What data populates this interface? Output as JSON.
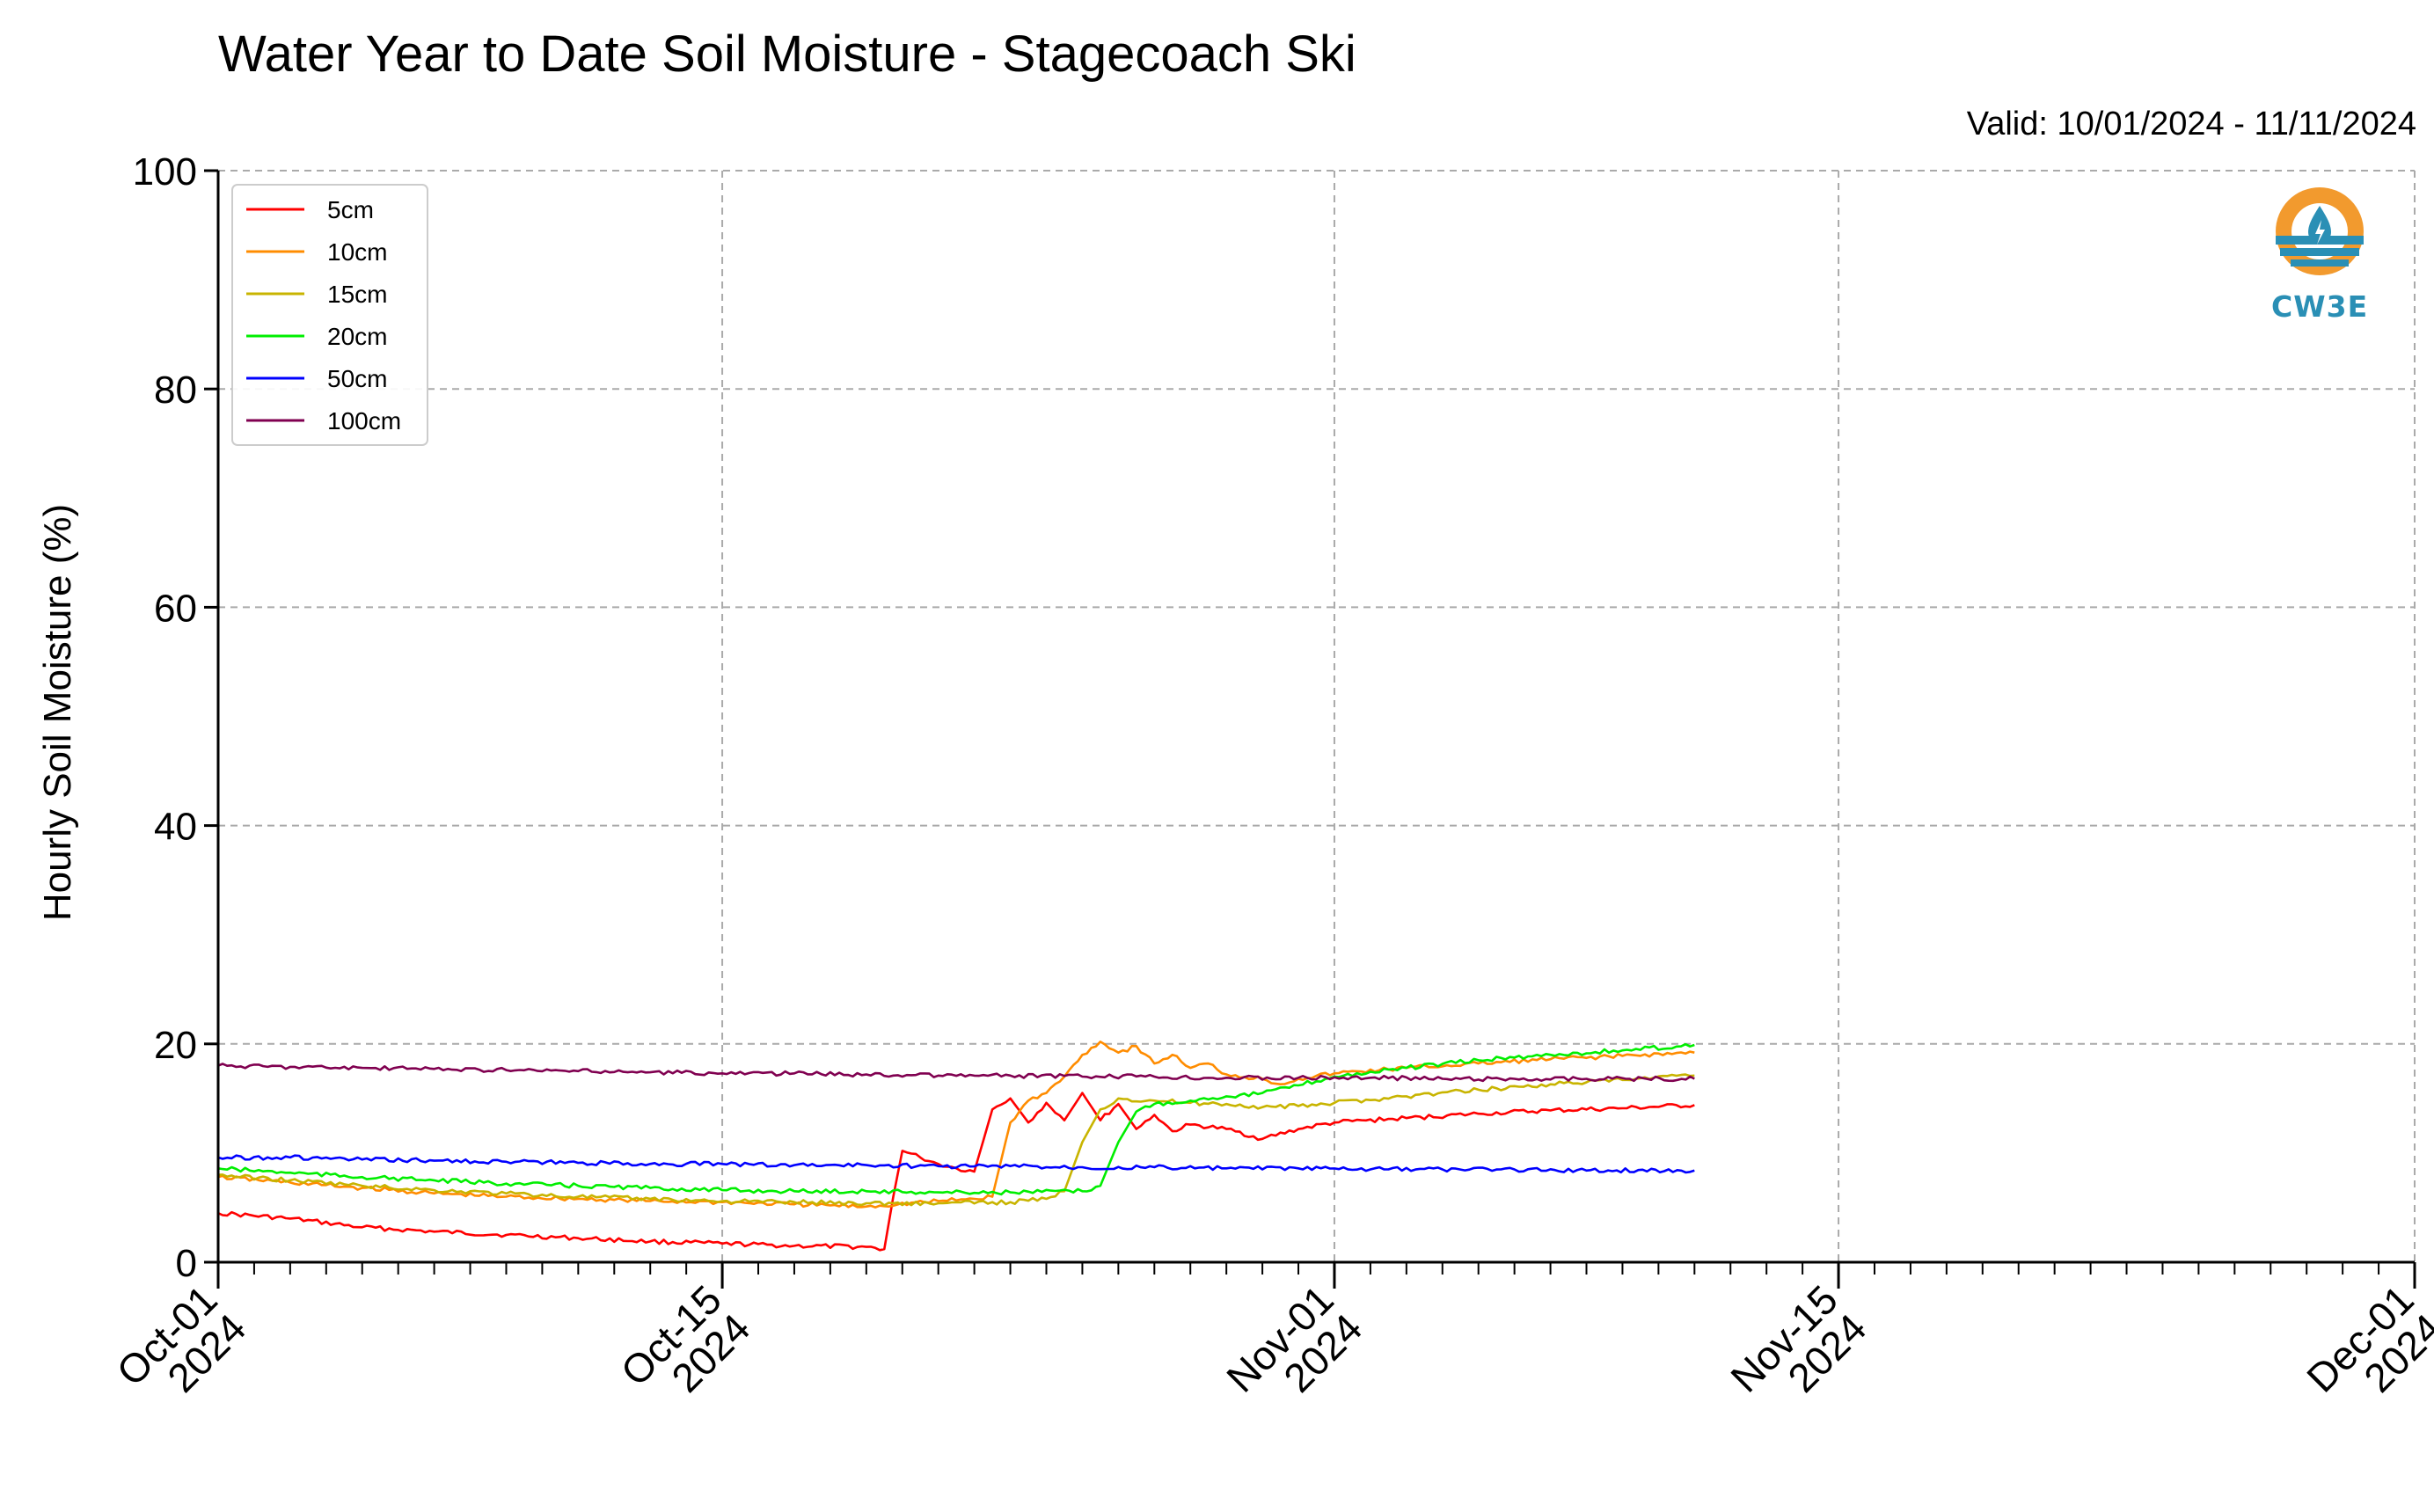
{
  "header": {
    "title": "Water Year to Date Soil Moisture - Stagecoach Ski",
    "valid": "Valid: 10/01/2024 - 11/11/2024"
  },
  "logo": {
    "text": "CW3E",
    "icon": "water-drop-sun-logo",
    "colors": {
      "orange": "#F29A2E",
      "blue": "#2A8FB5"
    }
  },
  "chart_data": {
    "type": "line",
    "title": "Water Year to Date Soil Moisture - Stagecoach Ski",
    "ylabel": "Hourly Soil Moisture (%)",
    "xlabel": "",
    "ylim": [
      0,
      100
    ],
    "xlim": [
      "2024-10-01",
      "2024-12-01"
    ],
    "yticks": [
      0,
      20,
      40,
      60,
      80,
      100
    ],
    "xticks": [
      {
        "date": "2024-10-01",
        "label1": "Oct-01",
        "label2": "2024"
      },
      {
        "date": "2024-10-15",
        "label1": "Oct-15",
        "label2": "2024"
      },
      {
        "date": "2024-11-01",
        "label1": "Nov-01",
        "label2": "2024"
      },
      {
        "date": "2024-11-15",
        "label1": "Nov-15",
        "label2": "2024"
      },
      {
        "date": "2024-12-01",
        "label1": "Dec-01",
        "label2": "2024"
      }
    ],
    "grid": true,
    "legend_position": "top-left",
    "series": [
      {
        "name": "5cm",
        "color": "#FF0000",
        "points": [
          [
            "2024-10-01",
            4.5
          ],
          [
            "2024-10-03",
            4.0
          ],
          [
            "2024-10-05",
            3.2
          ],
          [
            "2024-10-07",
            2.8
          ],
          [
            "2024-10-09",
            2.5
          ],
          [
            "2024-10-11",
            2.2
          ],
          [
            "2024-10-13",
            1.9
          ],
          [
            "2024-10-15",
            1.7
          ],
          [
            "2024-10-17",
            1.5
          ],
          [
            "2024-10-19",
            1.4
          ],
          [
            "2024-10-19T12:00",
            1.2
          ],
          [
            "2024-10-19T18:00",
            6.0
          ],
          [
            "2024-10-20",
            10.2
          ],
          [
            "2024-10-20T12:00",
            9.6
          ],
          [
            "2024-10-21",
            9.0
          ],
          [
            "2024-10-21T12:00",
            8.6
          ],
          [
            "2024-10-22",
            8.3
          ],
          [
            "2024-10-22T12:00",
            14.0
          ],
          [
            "2024-10-23",
            15.0
          ],
          [
            "2024-10-23T12:00",
            12.8
          ],
          [
            "2024-10-24",
            14.6
          ],
          [
            "2024-10-24T12:00",
            13.0
          ],
          [
            "2024-10-25",
            15.5
          ],
          [
            "2024-10-25T12:00",
            13.0
          ],
          [
            "2024-10-26",
            14.5
          ],
          [
            "2024-10-26T12:00",
            12.2
          ],
          [
            "2024-10-27",
            13.5
          ],
          [
            "2024-10-27T12:00",
            12.0
          ],
          [
            "2024-10-28",
            12.6
          ],
          [
            "2024-10-29",
            12.2
          ],
          [
            "2024-10-30",
            11.3
          ],
          [
            "2024-10-31",
            12.2
          ],
          [
            "2024-11-01",
            12.8
          ],
          [
            "2024-11-03",
            13.2
          ],
          [
            "2024-11-05",
            13.6
          ],
          [
            "2024-11-07",
            13.9
          ],
          [
            "2024-11-09",
            14.1
          ],
          [
            "2024-11-11",
            14.4
          ]
        ]
      },
      {
        "name": "10cm",
        "color": "#FF8C00",
        "points": [
          [
            "2024-10-01",
            7.8
          ],
          [
            "2024-10-03",
            7.3
          ],
          [
            "2024-10-05",
            6.8
          ],
          [
            "2024-10-07",
            6.3
          ],
          [
            "2024-10-09",
            6.0
          ],
          [
            "2024-10-11",
            5.8
          ],
          [
            "2024-10-13",
            5.6
          ],
          [
            "2024-10-15",
            5.5
          ],
          [
            "2024-10-17",
            5.3
          ],
          [
            "2024-10-19",
            5.1
          ],
          [
            "2024-10-21",
            5.6
          ],
          [
            "2024-10-22",
            5.8
          ],
          [
            "2024-10-22T12:00",
            6.0
          ],
          [
            "2024-10-23",
            12.8
          ],
          [
            "2024-10-23T12:00",
            14.8
          ],
          [
            "2024-10-24",
            15.5
          ],
          [
            "2024-10-24T12:00",
            17.0
          ],
          [
            "2024-10-25",
            19.0
          ],
          [
            "2024-10-25T12:00",
            20.2
          ],
          [
            "2024-10-26",
            19.2
          ],
          [
            "2024-10-26T12:00",
            19.8
          ],
          [
            "2024-10-27",
            18.2
          ],
          [
            "2024-10-27T12:00",
            19.0
          ],
          [
            "2024-10-28",
            17.8
          ],
          [
            "2024-10-28T12:00",
            18.2
          ],
          [
            "2024-10-29",
            17.2
          ],
          [
            "2024-10-30",
            16.8
          ],
          [
            "2024-10-30T12:00",
            16.3
          ],
          [
            "2024-10-31",
            16.8
          ],
          [
            "2024-11-01",
            17.3
          ],
          [
            "2024-11-03",
            17.8
          ],
          [
            "2024-11-05",
            18.2
          ],
          [
            "2024-11-07",
            18.6
          ],
          [
            "2024-11-09",
            18.9
          ],
          [
            "2024-11-11",
            19.2
          ]
        ]
      },
      {
        "name": "15cm",
        "color": "#C8B400",
        "points": [
          [
            "2024-10-01",
            8.0
          ],
          [
            "2024-10-03",
            7.5
          ],
          [
            "2024-10-05",
            7.0
          ],
          [
            "2024-10-07",
            6.6
          ],
          [
            "2024-10-09",
            6.3
          ],
          [
            "2024-10-11",
            6.0
          ],
          [
            "2024-10-13",
            5.8
          ],
          [
            "2024-10-15",
            5.6
          ],
          [
            "2024-10-17",
            5.5
          ],
          [
            "2024-10-19",
            5.4
          ],
          [
            "2024-10-21",
            5.4
          ],
          [
            "2024-10-23",
            5.5
          ],
          [
            "2024-10-24",
            5.8
          ],
          [
            "2024-10-24T12:00",
            6.5
          ],
          [
            "2024-10-25",
            11.0
          ],
          [
            "2024-10-25T12:00",
            14.0
          ],
          [
            "2024-10-26",
            15.0
          ],
          [
            "2024-10-27",
            14.8
          ],
          [
            "2024-10-28",
            14.6
          ],
          [
            "2024-10-29",
            14.5
          ],
          [
            "2024-10-30",
            14.2
          ],
          [
            "2024-10-31",
            14.3
          ],
          [
            "2024-11-01",
            14.6
          ],
          [
            "2024-11-03",
            15.2
          ],
          [
            "2024-11-05",
            15.8
          ],
          [
            "2024-11-07",
            16.3
          ],
          [
            "2024-11-09",
            16.7
          ],
          [
            "2024-11-11",
            17.1
          ]
        ]
      },
      {
        "name": "20cm",
        "color": "#00EE00",
        "points": [
          [
            "2024-10-01",
            8.6
          ],
          [
            "2024-10-03",
            8.2
          ],
          [
            "2024-10-05",
            7.8
          ],
          [
            "2024-10-07",
            7.5
          ],
          [
            "2024-10-09",
            7.2
          ],
          [
            "2024-10-11",
            7.0
          ],
          [
            "2024-10-13",
            6.8
          ],
          [
            "2024-10-15",
            6.6
          ],
          [
            "2024-10-17",
            6.5
          ],
          [
            "2024-10-19",
            6.5
          ],
          [
            "2024-10-21",
            6.4
          ],
          [
            "2024-10-23",
            6.4
          ],
          [
            "2024-10-25",
            6.5
          ],
          [
            "2024-10-25T12:00",
            7.0
          ],
          [
            "2024-10-26",
            11.0
          ],
          [
            "2024-10-26T12:00",
            13.8
          ],
          [
            "2024-10-27",
            14.5
          ],
          [
            "2024-10-28",
            14.8
          ],
          [
            "2024-10-29",
            15.2
          ],
          [
            "2024-10-30",
            15.5
          ],
          [
            "2024-10-31",
            16.2
          ],
          [
            "2024-11-01",
            17.0
          ],
          [
            "2024-11-03",
            17.8
          ],
          [
            "2024-11-05",
            18.5
          ],
          [
            "2024-11-07",
            19.0
          ],
          [
            "2024-11-09",
            19.4
          ],
          [
            "2024-11-11",
            19.9
          ]
        ]
      },
      {
        "name": "50cm",
        "color": "#0000FF",
        "points": [
          [
            "2024-10-01",
            9.6
          ],
          [
            "2024-10-03",
            9.6
          ],
          [
            "2024-10-05",
            9.4
          ],
          [
            "2024-10-07",
            9.3
          ],
          [
            "2024-10-09",
            9.2
          ],
          [
            "2024-10-11",
            9.1
          ],
          [
            "2024-10-13",
            9.0
          ],
          [
            "2024-10-15",
            9.0
          ],
          [
            "2024-10-17",
            8.9
          ],
          [
            "2024-10-19",
            8.9
          ],
          [
            "2024-10-21",
            8.8
          ],
          [
            "2024-10-23",
            8.8
          ],
          [
            "2024-10-25",
            8.7
          ],
          [
            "2024-10-27",
            8.7
          ],
          [
            "2024-10-29",
            8.6
          ],
          [
            "2024-10-31",
            8.6
          ],
          [
            "2024-11-02",
            8.5
          ],
          [
            "2024-11-04",
            8.5
          ],
          [
            "2024-11-06",
            8.5
          ],
          [
            "2024-11-08",
            8.4
          ],
          [
            "2024-11-11",
            8.4
          ]
        ]
      },
      {
        "name": "100cm",
        "color": "#800050",
        "points": [
          [
            "2024-10-01",
            18.0
          ],
          [
            "2024-10-03",
            17.9
          ],
          [
            "2024-10-05",
            17.8
          ],
          [
            "2024-10-07",
            17.7
          ],
          [
            "2024-10-09",
            17.6
          ],
          [
            "2024-10-11",
            17.5
          ],
          [
            "2024-10-13",
            17.4
          ],
          [
            "2024-10-15",
            17.3
          ],
          [
            "2024-10-17",
            17.3
          ],
          [
            "2024-10-19",
            17.2
          ],
          [
            "2024-10-21",
            17.1
          ],
          [
            "2024-10-23",
            17.1
          ],
          [
            "2024-10-25",
            17.0
          ],
          [
            "2024-10-27",
            17.0
          ],
          [
            "2024-10-29",
            16.9
          ],
          [
            "2024-10-31",
            16.9
          ],
          [
            "2024-11-02",
            16.9
          ],
          [
            "2024-11-04",
            16.8
          ],
          [
            "2024-11-06",
            16.8
          ],
          [
            "2024-11-08",
            16.8
          ],
          [
            "2024-11-11",
            16.8
          ]
        ]
      }
    ]
  }
}
